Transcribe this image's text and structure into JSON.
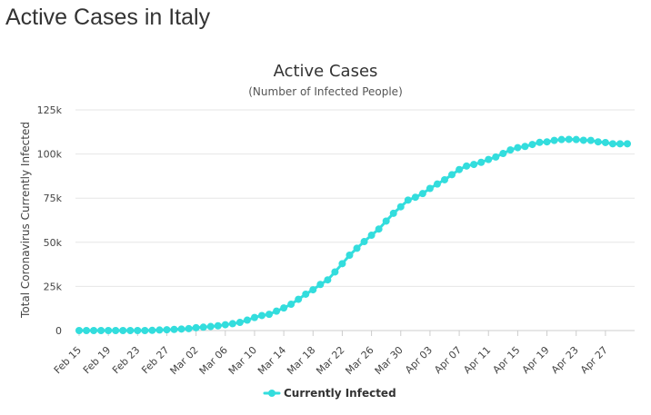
{
  "page": {
    "heading": "Active Cases in Italy"
  },
  "colors": {
    "series": "#33dddd",
    "grid": "#e6e6e6",
    "axis": "#cccccc"
  },
  "chart_data": {
    "type": "line",
    "title": "Active Cases",
    "subtitle": "(Number of Infected People)",
    "xlabel": "",
    "ylabel": "Total Coronavirus Currently Infected",
    "ylim": [
      0,
      125000
    ],
    "y_ticks": [
      0,
      25000,
      50000,
      75000,
      100000,
      125000
    ],
    "y_tick_labels": [
      "0",
      "25k",
      "50k",
      "75k",
      "100k",
      "125k"
    ],
    "x_tick_labels": [
      "Feb 15",
      "Feb 19",
      "Feb 23",
      "Feb 27",
      "Mar 02",
      "Mar 06",
      "Mar 10",
      "Mar 14",
      "Mar 18",
      "Mar 22",
      "Mar 26",
      "Mar 30",
      "Apr 03",
      "Apr 07",
      "Apr 11",
      "Apr 15",
      "Apr 19",
      "Apr 23",
      "Apr 27"
    ],
    "x_first": "Feb 15",
    "x_last": "Apr 27",
    "legend": "bottom-center",
    "grid": true,
    "series": [
      {
        "name": "Currently Infected",
        "color": "#33dddd",
        "values": [
          3,
          3,
          3,
          3,
          3,
          3,
          3,
          3,
          3,
          3,
          100,
          300,
          450,
          650,
          850,
          1100,
          1600,
          1900,
          2300,
          2700,
          3300,
          3900,
          4600,
          5900,
          7400,
          8500,
          9200,
          11000,
          12800,
          14900,
          17700,
          20600,
          23100,
          26100,
          28700,
          33200,
          37900,
          42700,
          46600,
          50400,
          54000,
          57500,
          62000,
          66400,
          70100,
          73900,
          75500,
          77600,
          80500,
          83000,
          85400,
          88300,
          91200,
          93200,
          94100,
          95300,
          96900,
          98300,
          100300,
          102300,
          103600,
          104300,
          105400,
          106600,
          106900,
          107700,
          108200,
          108300,
          108200,
          107800,
          107700,
          106900,
          106500,
          105800,
          105800,
          105800
        ]
      }
    ]
  }
}
